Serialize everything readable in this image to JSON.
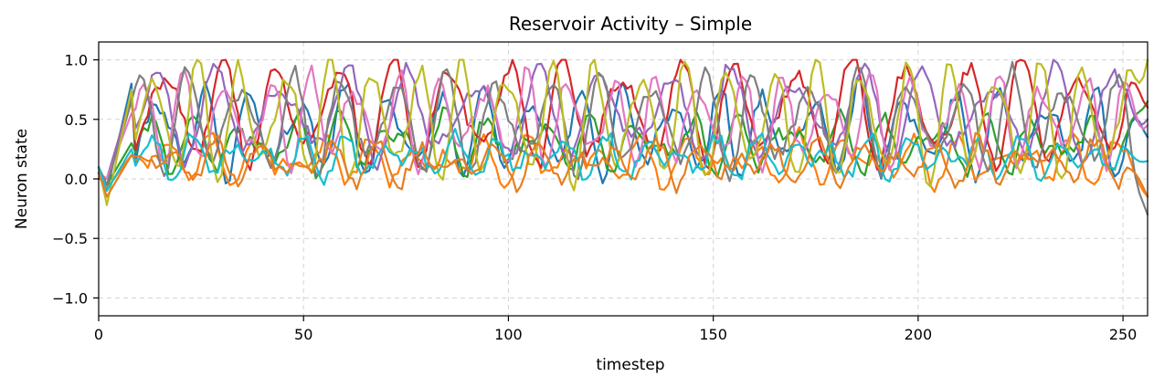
{
  "chart_data": {
    "type": "line",
    "title": "Reservoir Activity – Simple",
    "xlabel": "timestep",
    "ylabel": "Neuron state",
    "xlim": [
      0,
      256
    ],
    "ylim": [
      -1.15,
      1.15
    ],
    "xticks": [
      0,
      50,
      100,
      150,
      200,
      250
    ],
    "xtick_labels": [
      "0",
      "50",
      "100",
      "150",
      "200",
      "250"
    ],
    "yticks": [
      1.0,
      0.5,
      0.0,
      -0.5,
      -1.0
    ],
    "ytick_labels": [
      "1.0",
      "0.5",
      "0.0",
      "−0.5",
      "−1.0"
    ],
    "grid": true,
    "legend": "none",
    "n_points": 257,
    "series": [
      {
        "color": "#1f77b4",
        "center": 0.4,
        "amp": 0.28,
        "freq": 0.55,
        "phase": 0.0,
        "start": 0.1,
        "warm_peak": 0.8,
        "end": 0.35,
        "neg_min": -0.1
      },
      {
        "color": "#ff7f0e",
        "center": 0.16,
        "amp": 0.1,
        "freq": 0.48,
        "phase": 1.1,
        "start": 0.05,
        "warm_peak": 0.2,
        "end": -0.15,
        "neg_min": -0.08
      },
      {
        "color": "#2ca02c",
        "center": 0.3,
        "amp": 0.16,
        "freq": 0.52,
        "phase": 2.0,
        "start": 0.05,
        "warm_peak": 0.3,
        "end": 0.65,
        "neg_min": -0.05
      },
      {
        "color": "#d62728",
        "center": 0.58,
        "amp": 0.36,
        "freq": 0.45,
        "phase": 0.6,
        "start": 0.0,
        "warm_peak": 0.7,
        "end": 0.6,
        "neg_min": 0.0
      },
      {
        "color": "#9467bd",
        "center": 0.55,
        "amp": 0.3,
        "freq": 0.4,
        "phase": 2.6,
        "start": 0.05,
        "warm_peak": 0.7,
        "end": 0.5,
        "neg_min": 0.0
      },
      {
        "color": "#e377c2",
        "center": 0.5,
        "amp": 0.3,
        "freq": 0.6,
        "phase": 1.7,
        "start": 0.05,
        "warm_peak": 0.55,
        "end": 0.45,
        "neg_min": 0.0
      },
      {
        "color": "#7f7f7f",
        "center": 0.48,
        "amp": 0.34,
        "freq": 0.5,
        "phase": 3.1,
        "start": 0.1,
        "warm_peak": 0.65,
        "end": -0.3,
        "neg_min": -0.05
      },
      {
        "color": "#bcbd22",
        "center": 0.5,
        "amp": 0.42,
        "freq": 0.58,
        "phase": 0.3,
        "start": 0.1,
        "warm_peak": 0.75,
        "end": 1.0,
        "neg_min": -0.22
      },
      {
        "color": "#17becf",
        "center": 0.18,
        "amp": 0.08,
        "freq": 0.5,
        "phase": 2.3,
        "start": 0.1,
        "warm_peak": 0.25,
        "end": 0.15,
        "neg_min": -0.1
      },
      {
        "color": "#e67e22",
        "center": 0.14,
        "amp": 0.09,
        "freq": 0.47,
        "phase": 0.9,
        "start": 0.05,
        "warm_peak": 0.2,
        "end": -0.15,
        "neg_min": -0.15
      }
    ]
  }
}
